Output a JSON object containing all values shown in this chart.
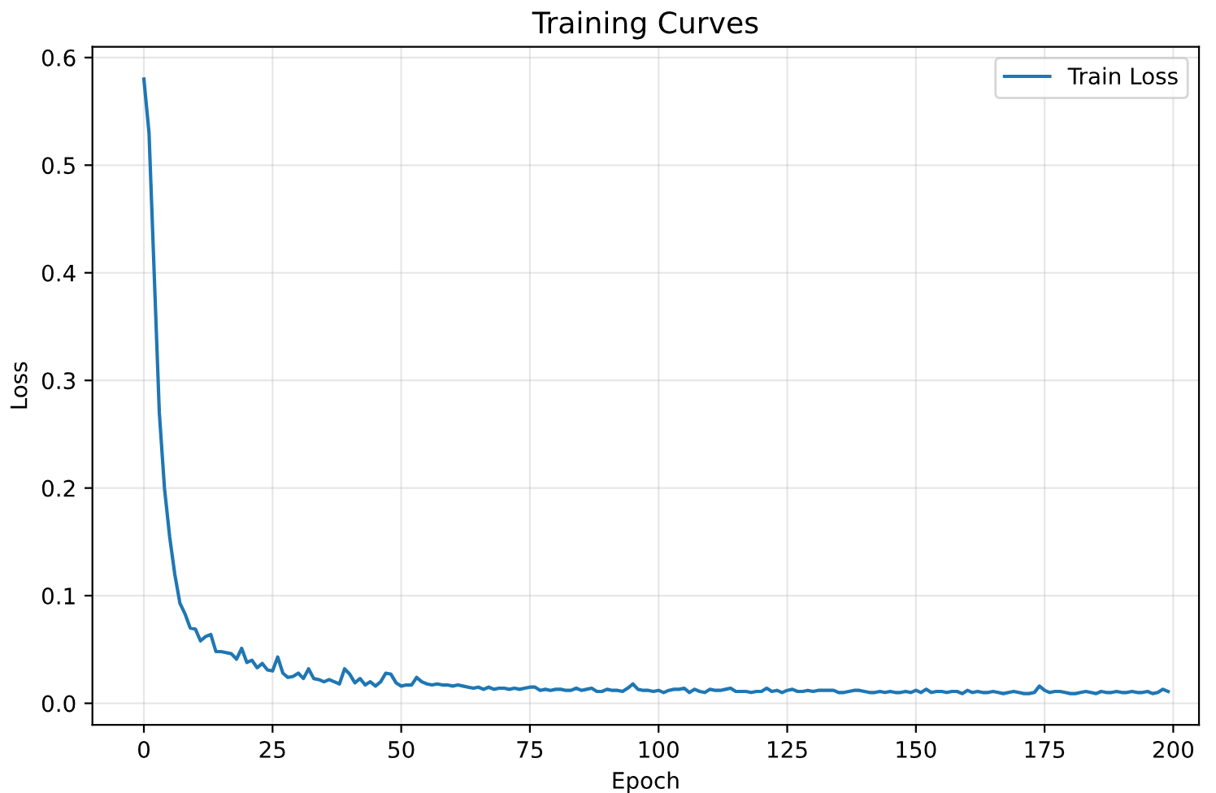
{
  "chart_data": {
    "type": "line",
    "title": "Training Curves",
    "xlabel": "Epoch",
    "ylabel": "Loss",
    "x": [
      0,
      1,
      2,
      3,
      4,
      5,
      6,
      7,
      8,
      9,
      10,
      11,
      12,
      13,
      14,
      15,
      16,
      17,
      18,
      19,
      20,
      21,
      22,
      23,
      24,
      25,
      26,
      27,
      28,
      29,
      30,
      31,
      32,
      33,
      34,
      35,
      36,
      37,
      38,
      39,
      40,
      41,
      42,
      43,
      44,
      45,
      46,
      47,
      48,
      49,
      50,
      51,
      52,
      53,
      54,
      55,
      56,
      57,
      58,
      59,
      60,
      61,
      62,
      63,
      64,
      65,
      66,
      67,
      68,
      69,
      70,
      71,
      72,
      73,
      74,
      75,
      76,
      77,
      78,
      79,
      80,
      81,
      82,
      83,
      84,
      85,
      86,
      87,
      88,
      89,
      90,
      91,
      92,
      93,
      94,
      95,
      96,
      97,
      98,
      99,
      100,
      101,
      102,
      103,
      104,
      105,
      106,
      107,
      108,
      109,
      110,
      111,
      112,
      113,
      114,
      115,
      116,
      117,
      118,
      119,
      120,
      121,
      122,
      123,
      124,
      125,
      126,
      127,
      128,
      129,
      130,
      131,
      132,
      133,
      134,
      135,
      136,
      137,
      138,
      139,
      140,
      141,
      142,
      143,
      144,
      145,
      146,
      147,
      148,
      149,
      150,
      151,
      152,
      153,
      154,
      155,
      156,
      157,
      158,
      159,
      160,
      161,
      162,
      163,
      164,
      165,
      166,
      167,
      168,
      169,
      170,
      171,
      172,
      173,
      174,
      175,
      176,
      177,
      178,
      179,
      180,
      181,
      182,
      183,
      184,
      185,
      186,
      187,
      188,
      189,
      190,
      191,
      192,
      193,
      194,
      195,
      196,
      197,
      198,
      199
    ],
    "series": [
      {
        "name": "Train Loss",
        "color": "#1f77b4",
        "values": [
          0.58,
          0.53,
          0.4,
          0.27,
          0.2,
          0.155,
          0.12,
          0.093,
          0.083,
          0.07,
          0.069,
          0.058,
          0.062,
          0.064,
          0.048,
          0.048,
          0.047,
          0.046,
          0.041,
          0.051,
          0.038,
          0.04,
          0.033,
          0.037,
          0.031,
          0.03,
          0.043,
          0.028,
          0.024,
          0.025,
          0.028,
          0.023,
          0.032,
          0.023,
          0.022,
          0.02,
          0.022,
          0.02,
          0.018,
          0.032,
          0.027,
          0.019,
          0.023,
          0.017,
          0.02,
          0.016,
          0.02,
          0.028,
          0.027,
          0.019,
          0.016,
          0.017,
          0.017,
          0.024,
          0.02,
          0.018,
          0.017,
          0.018,
          0.017,
          0.017,
          0.016,
          0.017,
          0.016,
          0.015,
          0.014,
          0.015,
          0.013,
          0.015,
          0.013,
          0.014,
          0.014,
          0.013,
          0.014,
          0.013,
          0.014,
          0.015,
          0.015,
          0.012,
          0.013,
          0.012,
          0.013,
          0.013,
          0.012,
          0.012,
          0.014,
          0.012,
          0.013,
          0.014,
          0.011,
          0.011,
          0.013,
          0.012,
          0.012,
          0.011,
          0.014,
          0.018,
          0.013,
          0.012,
          0.012,
          0.011,
          0.012,
          0.01,
          0.012,
          0.013,
          0.013,
          0.014,
          0.01,
          0.013,
          0.011,
          0.01,
          0.013,
          0.012,
          0.012,
          0.013,
          0.014,
          0.011,
          0.011,
          0.011,
          0.01,
          0.011,
          0.011,
          0.014,
          0.011,
          0.012,
          0.01,
          0.012,
          0.013,
          0.011,
          0.011,
          0.012,
          0.011,
          0.012,
          0.012,
          0.012,
          0.012,
          0.01,
          0.01,
          0.011,
          0.012,
          0.012,
          0.011,
          0.01,
          0.01,
          0.011,
          0.01,
          0.011,
          0.01,
          0.01,
          0.011,
          0.01,
          0.012,
          0.01,
          0.013,
          0.01,
          0.011,
          0.011,
          0.01,
          0.011,
          0.011,
          0.009,
          0.012,
          0.01,
          0.011,
          0.01,
          0.01,
          0.011,
          0.01,
          0.009,
          0.01,
          0.011,
          0.01,
          0.009,
          0.009,
          0.01,
          0.016,
          0.012,
          0.01,
          0.011,
          0.011,
          0.01,
          0.009,
          0.009,
          0.01,
          0.011,
          0.01,
          0.009,
          0.011,
          0.01,
          0.01,
          0.011,
          0.01,
          0.01,
          0.011,
          0.01,
          0.01,
          0.011,
          0.009,
          0.01,
          0.013,
          0.011
        ]
      }
    ],
    "xlim": [
      -10,
      205
    ],
    "ylim": [
      -0.02,
      0.61
    ],
    "xticks": [
      0,
      25,
      50,
      75,
      100,
      125,
      150,
      175,
      200
    ],
    "yticks": [
      {
        "value": 0,
        "label": "0.0"
      },
      0.1,
      0.2,
      0.3,
      0.4,
      0.5,
      0.6
    ],
    "grid": true,
    "legend": "top right"
  }
}
